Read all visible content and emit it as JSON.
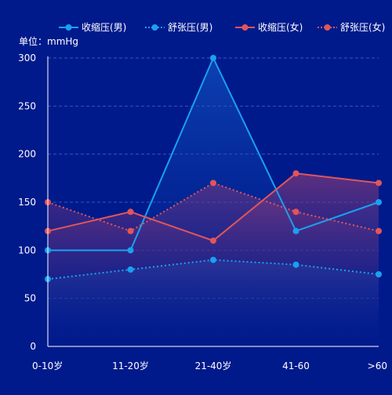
{
  "colors": {
    "background": "#001a8c",
    "male": "#1aa0f0",
    "female": "#e0565a",
    "axis_text": "#ffffff",
    "grid": "#3a56b0"
  },
  "chart_data": {
    "type": "line",
    "unit_label": "单位：mmHg",
    "categories": [
      "0-10岁",
      "11-20岁",
      "21-40岁",
      "41-60",
      ">60"
    ],
    "ylim": [
      0,
      300
    ],
    "yticks": [
      0,
      50,
      100,
      150,
      200,
      250,
      300
    ],
    "grid": true,
    "legend_position": "top",
    "series": [
      {
        "name": "收缩压(男)",
        "style": "solid",
        "color": "#1aa0f0",
        "values": [
          100,
          100,
          300,
          120,
          150
        ]
      },
      {
        "name": "舒张压(男)",
        "style": "dotted",
        "color": "#1aa0f0",
        "values": [
          70,
          80,
          90,
          85,
          75
        ]
      },
      {
        "name": "收缩压(女)",
        "style": "solid",
        "color": "#e0565a",
        "values": [
          120,
          140,
          110,
          180,
          170
        ]
      },
      {
        "name": "舒张压(女)",
        "style": "dotted",
        "color": "#e0565a",
        "values": [
          150,
          120,
          170,
          140,
          120
        ]
      }
    ]
  }
}
